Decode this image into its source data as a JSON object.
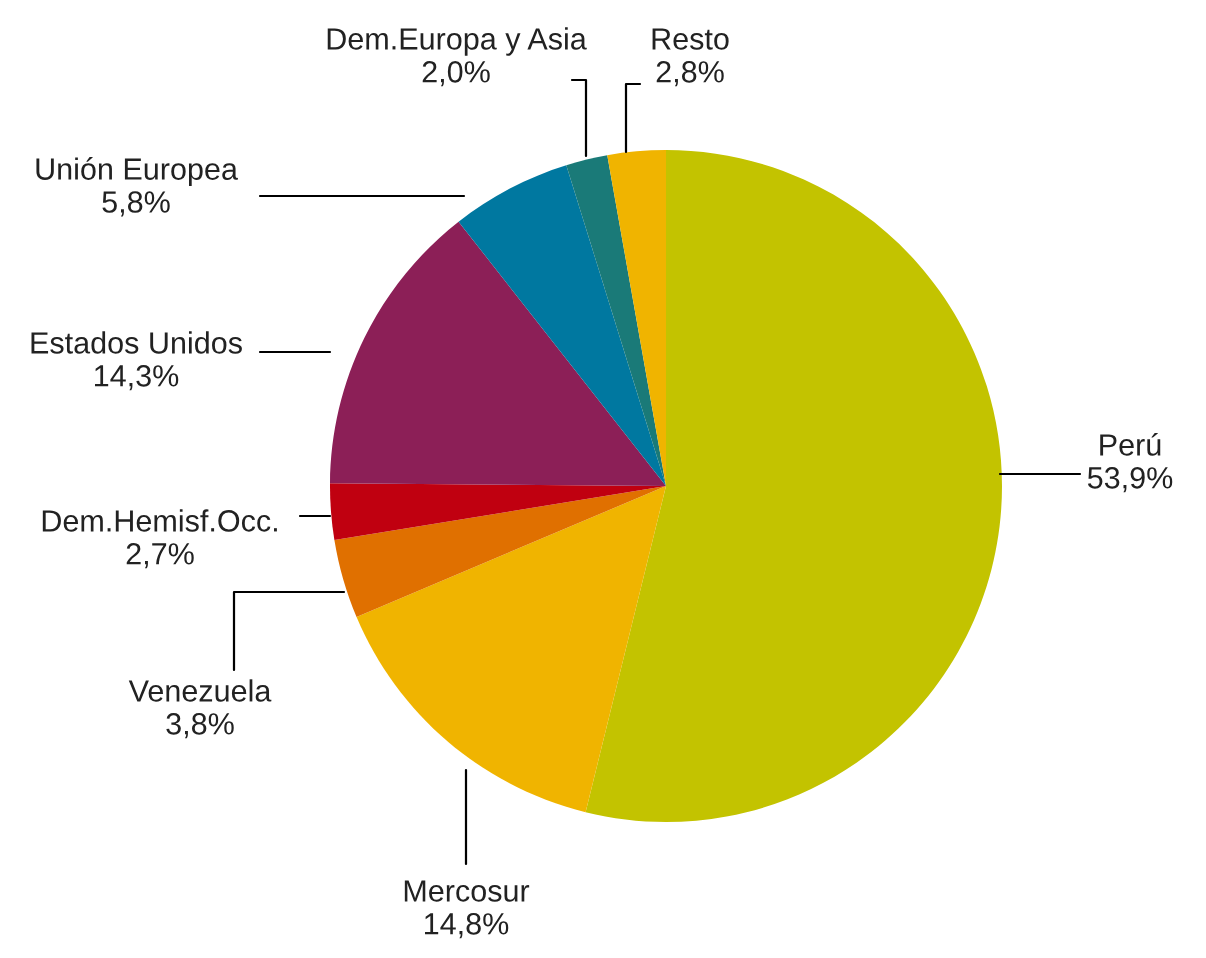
{
  "chart_data": {
    "type": "pie",
    "categories": [
      "Perú",
      "Mercosur",
      "Venezuela",
      "Dem.Hemisf.Occ.",
      "Estados Unidos",
      "Unión Europea",
      "Dem.Europa y Asia",
      "Resto"
    ],
    "values": [
      53.9,
      14.8,
      3.8,
      2.7,
      14.3,
      5.8,
      2.0,
      2.8
    ],
    "value_labels": [
      "53,9%",
      "14,8%",
      "3,8%",
      "2,7%",
      "14,3%",
      "5,8%",
      "2,0%",
      "2,8%"
    ],
    "colors": [
      "#c3c300",
      "#f0b400",
      "#e07000",
      "#c00010",
      "#8c1f57",
      "#0078a0",
      "#1a7a78",
      "#f0b400"
    ]
  }
}
